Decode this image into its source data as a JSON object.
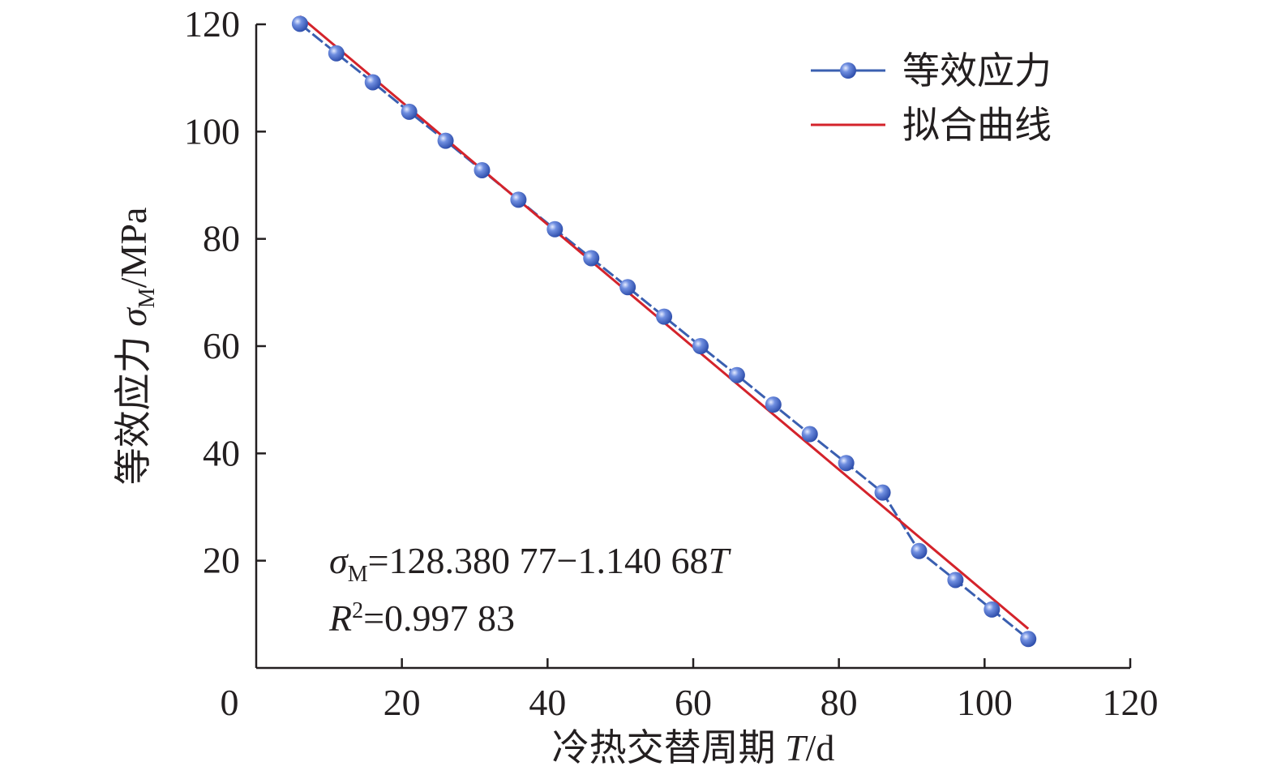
{
  "chart_data": {
    "type": "line",
    "xlabel": {
      "text": "冷热交替周期 ",
      "var": "T",
      "unit": "/d"
    },
    "ylabel": {
      "text": "等效应力 ",
      "var": "σ",
      "sub": "M",
      "unit": "/MPa"
    },
    "xlim": [
      0,
      120
    ],
    "ylim": [
      0,
      120
    ],
    "x_ticks": [
      0,
      20,
      40,
      60,
      80,
      100,
      120
    ],
    "y_ticks": [
      20,
      40,
      60,
      80,
      100,
      120
    ],
    "x_tick_labels": [
      "0",
      "20",
      "40",
      "60",
      "80",
      "100",
      "120"
    ],
    "y_tick_labels": [
      "20",
      "40",
      "60",
      "80",
      "100",
      "120"
    ],
    "grid": false,
    "legend_position": "top-right",
    "series": [
      {
        "name": "等效应力",
        "kind": "line-with-markers",
        "color": "#3a5fb0",
        "marker_color": "#4a6fd0",
        "x": [
          6,
          11,
          16,
          21,
          26,
          31,
          36,
          41,
          46,
          51,
          56,
          61,
          66,
          71,
          76,
          81,
          86,
          91,
          96,
          101,
          106
        ],
        "y": [
          120.1,
          114.6,
          109.2,
          103.7,
          98.3,
          92.8,
          87.3,
          81.8,
          76.4,
          71.0,
          65.5,
          60.0,
          54.6,
          49.1,
          43.6,
          38.2,
          32.7,
          21.8,
          16.4,
          10.9,
          5.4
        ]
      },
      {
        "name": "拟合曲线",
        "kind": "line",
        "color": "#d4232b",
        "x": [
          6,
          106
        ],
        "y": [
          121.5,
          7.3
        ]
      }
    ],
    "annotations": {
      "equation_sigma": "σ",
      "equation_sub": "M",
      "equation_rest": "=128.380 77−1.140 68",
      "equation_var": "T",
      "r2_var": "R",
      "r2_sup": "2",
      "r2_rest": "=0.997 83"
    }
  }
}
